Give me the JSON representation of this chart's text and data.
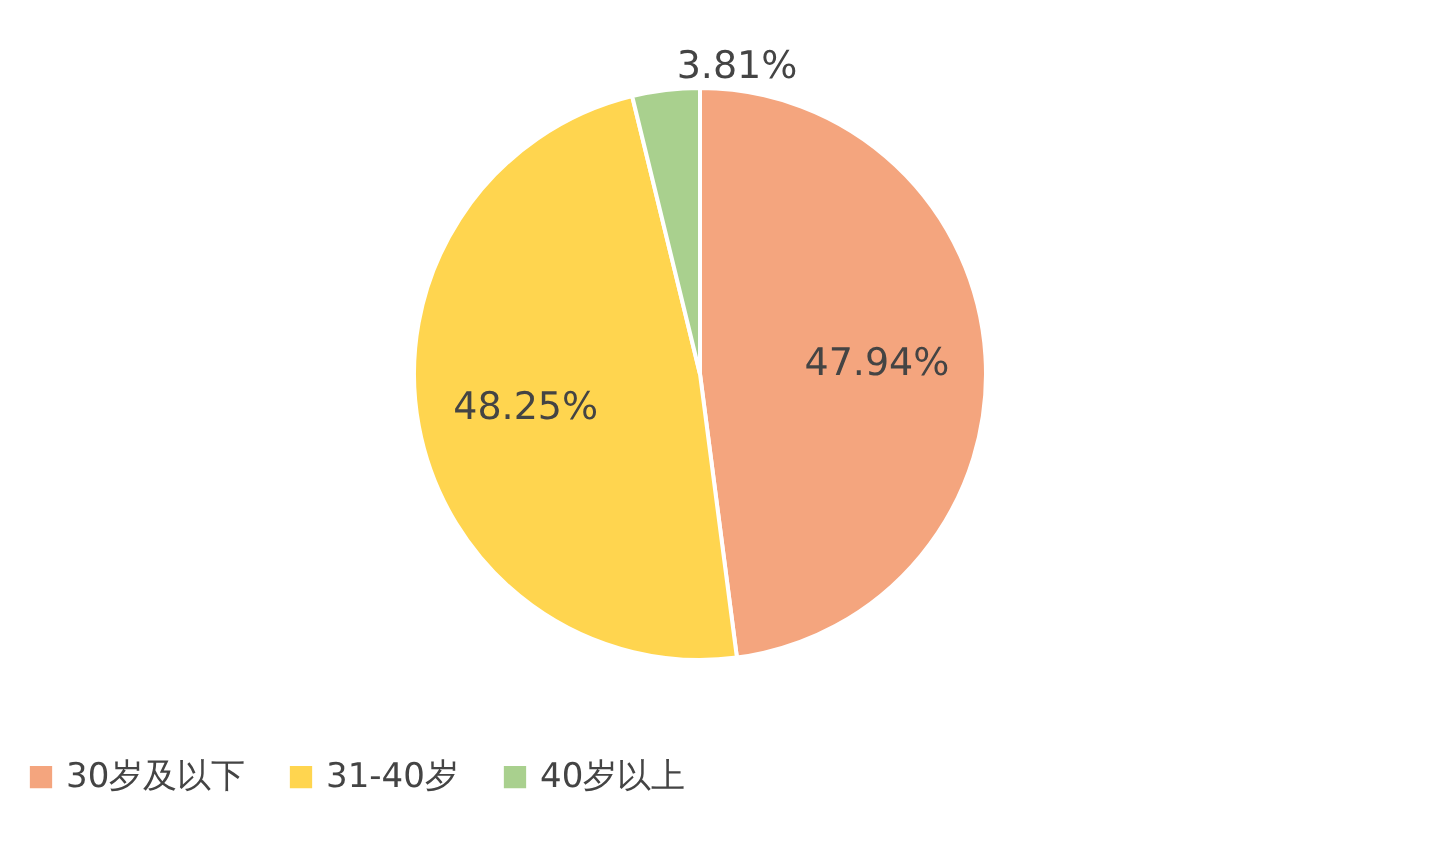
{
  "chart_data": {
    "type": "pie",
    "categories": [
      "30岁及以下",
      "31-40岁",
      "40岁以上"
    ],
    "values": [
      47.94,
      48.25,
      3.81
    ],
    "colors": [
      "#f4a57e",
      "#ffd54f",
      "#a9d08e"
    ],
    "value_labels": [
      "47.94%",
      "48.25%",
      "3.81%"
    ],
    "legend": "bottom"
  }
}
